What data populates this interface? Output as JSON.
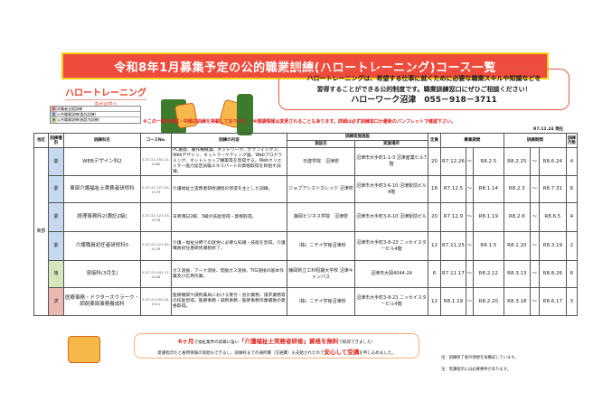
{
  "title": "令和8年1月募集予定の公的職業訓練(ハロートレーニング)コース一覧",
  "logo": {
    "name": "ハロートレーニング",
    "tagline": "急がば学べ"
  },
  "bubble": {
    "line1": "ハロートレーニングは、希望する仕事に就くために必要な職業スキルや知識などを",
    "line2": "習得することができる公的制度です。職業訓練窓口にぜひご相談ください！",
    "line3": "ハローワーク沼津　055－918－3711"
  },
  "legend": [
    {
      "key": "求",
      "label": "求職者支援訓練",
      "color": "#eab9b3"
    },
    {
      "key": "委",
      "label": "公共職業訓練(委託訓練)",
      "color": "#c7d9ef"
    },
    {
      "key": "施",
      "label": "公共職業訓練(施設内訓練)",
      "color": "#d7e7bd"
    }
  ],
  "notice": "※この一覧は東部・中部の訓練を掲載しております。　※開講情報は変更されることもあります。詳細は必ず訓練窓口か最新のパンフレットで確認下さい。",
  "as_of": "R7.12.24 現在",
  "headers": {
    "area": "地区",
    "type": "訓練種別",
    "course": "訓練科名",
    "no": "コースNo.",
    "content": "訓練の内容",
    "facility": "訓練実施施設",
    "fname": "施設名",
    "place": "実施場所",
    "capacity": "定員",
    "recruit": "募集期間",
    "training": "訓練期間",
    "months": "訓練月数"
  },
  "area": "東部",
  "tilde": "～",
  "rows": [
    {
      "type": "委",
      "course": "WEBデザイン科2",
      "no": "5-07-22-250-11-0180",
      "content": "PC基礎、著作権概論、ネットワーク、グラフィックス、Webデザイン、ネットマーケティング論、Webプログラミング、ネットショップ構築等を習得する。Webクリエイター能力認定試験エキスパートの資格取得を目指す訓練。",
      "fname": "日建学院　沼津校",
      "place": "沼津市大手町1-1-3 沼津産業ビル7階",
      "capacity": "20",
      "r_start": "R7.12.26",
      "r_end": "R8.2.5",
      "t_start": "R8.2.25",
      "t_end": "R8.6.24",
      "months": "4"
    },
    {
      "type": "委",
      "course": "東部介護福祉士実務者研修科",
      "no": "5-07-22-127-05-0175",
      "content": "介護福祉士実務者研修課程の習得を主とした訓練。",
      "fname": "ジョブアシストカレッジ 沼津校",
      "place": "沼津市大手町3-6-10 沼津駅前ビル4階",
      "capacity": "18",
      "r_start": "R7.12.5",
      "r_end": "R8.1.14",
      "t_start": "R8.2.3",
      "t_end": "R8.7.31",
      "months": "6"
    },
    {
      "type": "委",
      "course": "経理事務科2(簿記2級)",
      "no": "5-07-22-127-03-0178",
      "content": "日商簿記2級、3級の技能習得・資格取得。",
      "fname": "静岡ビジネス学院　沼津校",
      "place": "沼津市大手町3-6-10 沼津駅前ビル",
      "capacity": "20",
      "r_start": "R7.12.9",
      "r_end": "R8.1.19",
      "t_start": "R8.2.6",
      "t_end": "R8.6.5",
      "months": "4"
    },
    {
      "type": "委",
      "course": "介護職員初任者研修科5",
      "no": "5-07-22-127-05-0176",
      "content": "介護・福祉分野での就労に必要な知識・技能を習得。介護職員初任者研修課程修了。",
      "fname": "（株）ニチイ学館沼津校",
      "place": "沼津市大手町3-8-23 ニッセイスタービル4階",
      "capacity": "12",
      "r_start": "R7.11.25",
      "r_end": "R8.1.5",
      "t_start": "R8.1.20",
      "t_end": "R8.3.19",
      "months": "2"
    },
    {
      "type": "施",
      "course": "溶接科(3月生)",
      "no": "5-07-22-041-17-0158",
      "content": "ガス溶接、アーク溶接、炭酸ガス溶接、TIG溶接の基本作業及び応用作業。",
      "fname": "静岡県立工科短期大学校 沼津キャンパス",
      "place": "沼津市大岡4044-24",
      "capacity": "6",
      "r_start": "R7.11.17",
      "r_end": "R8.2.12",
      "t_start": "R8.3.13",
      "t_end": "R8.8.26",
      "months": "6"
    },
    {
      "type": "求",
      "course": "医療事務・ドクターズクラーク・調剤薬局事務養成科",
      "no": "5-07-22-002-04-0211",
      "content": "医療機関や調剤薬局における受付・会計業務、請求業務等の技能習得。医療事務・調剤事務・医師事務作業補助の資格取得。",
      "fname": "（株）ニチイ学館沼津校",
      "place": "沼津市大手町3-8-23 ニッセイスタービル4階",
      "capacity": "12",
      "r_start": "R8.1.19",
      "r_end": "R8.2.20",
      "t_start": "R8.3.18",
      "t_end": "R8.6.17",
      "months": "3"
    }
  ],
  "testimonial": {
    "a": "6ヶ月",
    "b": "で福祉業界の就職に強い",
    "c": "「介護福祉士実務者研修」資格を無料",
    "d": "で取得できました！",
    "e": "受講指示だと雇用保険の受給もできるし、訓練校までの通所費（交通費）も支給されたので",
    "f": "安心して受講",
    "g": "を申し込めました。"
  },
  "notes": [
    "注：訓練修了者の感想を再構成しています。",
    "注：受講指示には必要要件があります。"
  ]
}
